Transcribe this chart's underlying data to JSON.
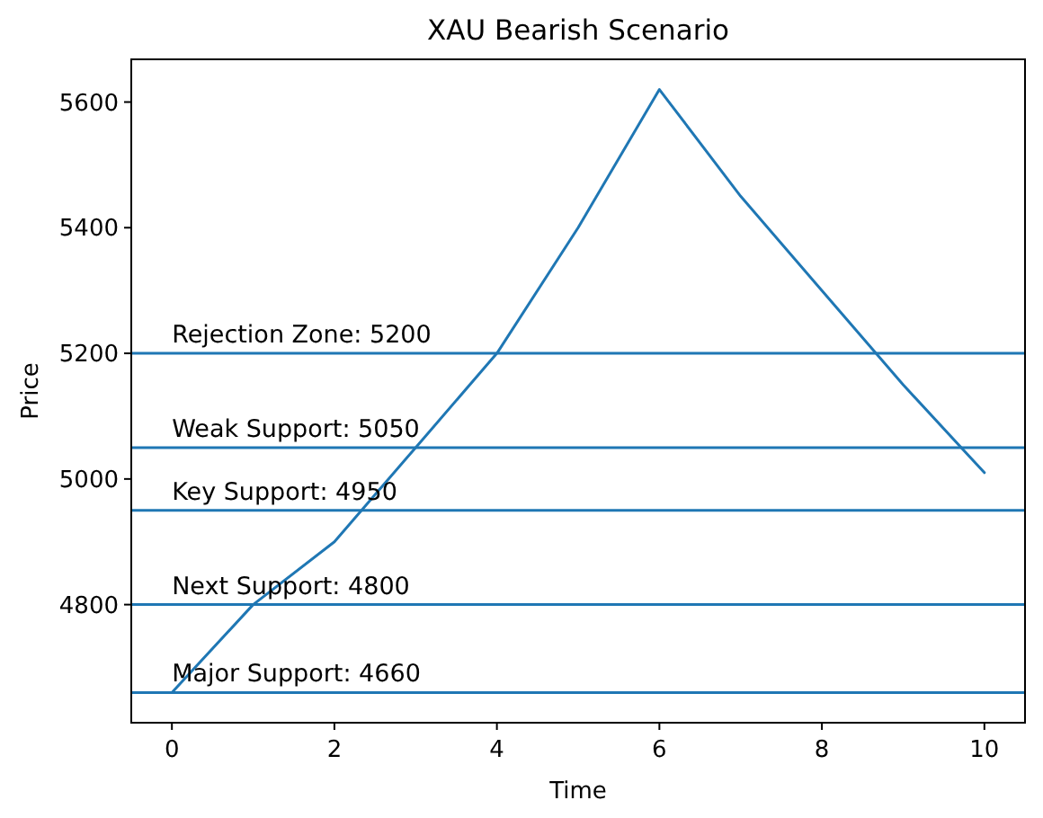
{
  "chart_data": {
    "type": "line",
    "title": "XAU Bearish Scenario",
    "xlabel": "Time",
    "ylabel": "Price",
    "x": [
      0,
      1,
      2,
      3,
      4,
      5,
      6,
      7,
      8,
      9,
      10
    ],
    "series": [
      {
        "color": "#1f77b4",
        "values": [
          4660,
          4800,
          4900,
          5050,
          5200,
          5400,
          5620,
          5450,
          5300,
          5150,
          5010
        ]
      }
    ],
    "xlim": [
      -0.5,
      10.5
    ],
    "ylim": [
      4612,
      5668
    ],
    "xticks": [
      0,
      2,
      4,
      6,
      8,
      10
    ],
    "yticks": [
      4800,
      5000,
      5200,
      5400,
      5600
    ],
    "ref_lines": [
      {
        "axis": "y",
        "value": 5200,
        "label": "Rejection Zone: 5200",
        "color": "#1f77b4"
      },
      {
        "axis": "y",
        "value": 5050,
        "label": "Weak Support: 5050",
        "color": "#1f77b4"
      },
      {
        "axis": "y",
        "value": 4950,
        "label": "Key Support: 4950",
        "color": "#1f77b4"
      },
      {
        "axis": "y",
        "value": 4800,
        "label": "Next Support: 4800",
        "color": "#1f77b4"
      },
      {
        "axis": "y",
        "value": 4660,
        "label": "Major Support: 4660",
        "color": "#1f77b4"
      }
    ],
    "grid": false,
    "marker": "none",
    "line_style": "solid"
  }
}
